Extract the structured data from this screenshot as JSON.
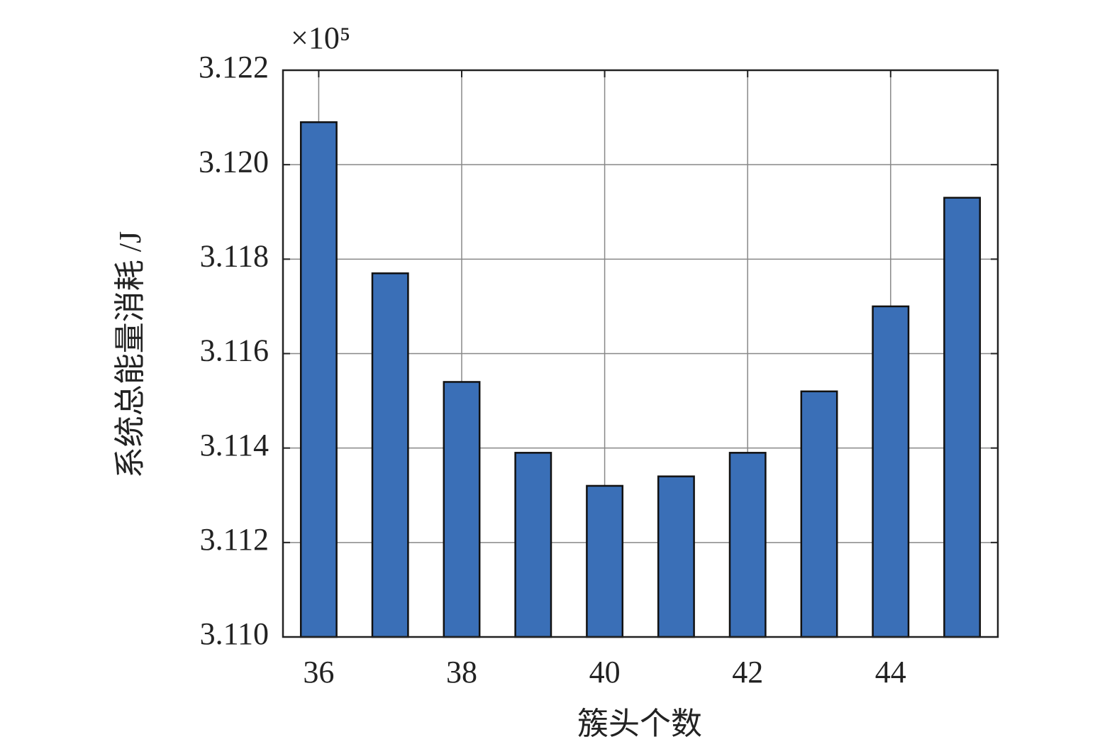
{
  "chart_data": {
    "type": "bar",
    "x_label": "簇头个数",
    "y_label": "系统总能量消耗 /J",
    "y_scale_label": "×10⁵",
    "x": [
      36,
      37,
      38,
      39,
      40,
      41,
      42,
      43,
      44,
      45
    ],
    "values": [
      3.1209,
      3.1177,
      3.1154,
      3.1139,
      3.1132,
      3.1134,
      3.1139,
      3.1152,
      3.117,
      3.1193
    ],
    "color": "#3a6fb7",
    "xlim": [
      35.5,
      45.5
    ],
    "xticks": [
      36,
      38,
      40,
      42,
      44
    ],
    "ylim": [
      3.11,
      3.122
    ],
    "yticks": [
      {
        "value": 3.11,
        "label": "3.110"
      },
      3.112,
      3.114,
      3.116,
      3.118,
      {
        "value": 3.12,
        "label": "3.120"
      },
      3.122
    ],
    "grid": true
  }
}
